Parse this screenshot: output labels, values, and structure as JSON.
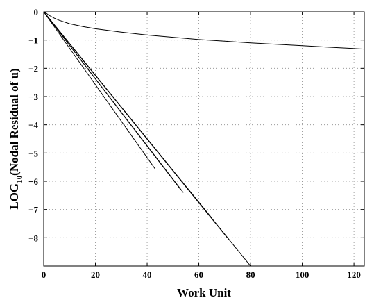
{
  "chart_data": {
    "type": "line",
    "xlabel": "Work Unit",
    "ylabel": {
      "prefix": "LOG",
      "subscript": "10",
      "suffix": "(Nodal Residual of u)"
    },
    "xlim": [
      0,
      124
    ],
    "ylim": [
      -9,
      0
    ],
    "xticks": [
      0,
      20,
      40,
      60,
      80,
      100,
      120
    ],
    "yticks": [
      0,
      -1,
      -2,
      -3,
      -4,
      -5,
      -6,
      -7,
      -8
    ],
    "grid": true,
    "legend": "none",
    "series": [
      {
        "x": [
          0,
          1,
          2,
          4,
          6,
          10,
          15,
          20,
          30,
          40,
          50,
          60,
          70,
          80,
          90,
          100,
          110,
          124
        ],
        "values": [
          0,
          -0.05,
          -0.12,
          -0.22,
          -0.3,
          -0.42,
          -0.52,
          -0.6,
          -0.72,
          -0.82,
          -0.9,
          -0.98,
          -1.04,
          -1.1,
          -1.15,
          -1.2,
          -1.25,
          -1.32
        ]
      },
      {
        "x": [
          0,
          80
        ],
        "values": [
          0,
          -9
        ]
      },
      {
        "x": [
          0,
          72
        ],
        "values": [
          0,
          -8.1
        ]
      },
      {
        "x": [
          0,
          71
        ],
        "values": [
          0,
          -8.0
        ]
      },
      {
        "x": [
          0,
          65
        ],
        "values": [
          0,
          -7.3
        ]
      },
      {
        "x": [
          0,
          54
        ],
        "values": [
          0,
          -6.4
        ]
      },
      {
        "x": [
          0,
          53
        ],
        "values": [
          0,
          -6.3
        ]
      },
      {
        "x": [
          0,
          43
        ],
        "values": [
          0,
          -5.55
        ]
      }
    ]
  }
}
